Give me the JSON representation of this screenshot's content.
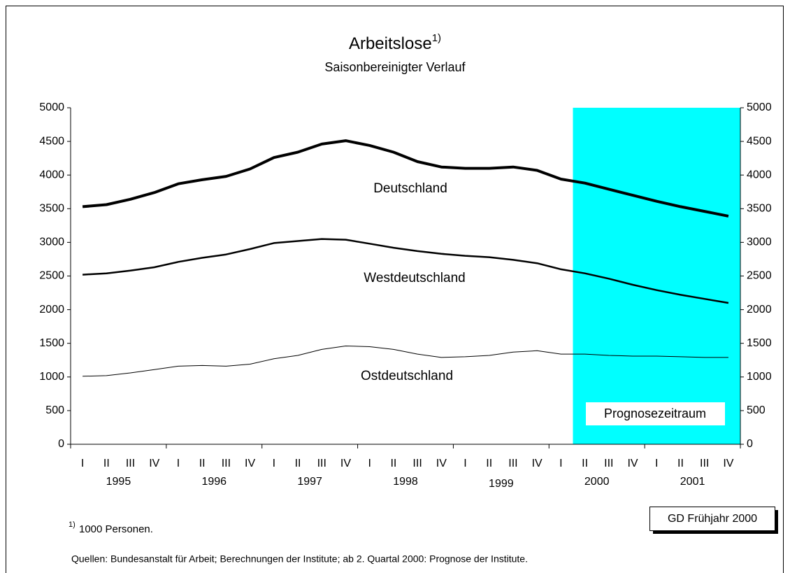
{
  "chart_data": {
    "type": "line",
    "title": "Arbeitslose",
    "title_superscript": "1)",
    "subtitle": "Saisonbereinigter Verlauf",
    "categories": [
      "I",
      "II",
      "III",
      "IV",
      "I",
      "II",
      "III",
      "IV",
      "I",
      "II",
      "III",
      "IV",
      "I",
      "II",
      "III",
      "IV",
      "I",
      "II",
      "III",
      "IV",
      "I",
      "II",
      "III",
      "IV",
      "I",
      "II",
      "III",
      "IV"
    ],
    "years": [
      "1995",
      "1996",
      "1997",
      "1998",
      "1999",
      "2000",
      "2001"
    ],
    "series": [
      {
        "name": "Deutschland",
        "color": "#000000",
        "line_width": 4,
        "values": [
          3530,
          3560,
          3640,
          3740,
          3870,
          3930,
          3980,
          4090,
          4260,
          4340,
          4460,
          4510,
          4440,
          4340,
          4200,
          4120,
          4100,
          4100,
          4120,
          4070,
          3940,
          3880,
          3790,
          3700,
          3610,
          3530,
          3460,
          3390
        ]
      },
      {
        "name": "Westdeutschland",
        "color": "#000000",
        "line_width": 2.5,
        "values": [
          2520,
          2540,
          2580,
          2630,
          2710,
          2770,
          2820,
          2900,
          2990,
          3020,
          3050,
          3040,
          2980,
          2920,
          2870,
          2830,
          2800,
          2780,
          2740,
          2690,
          2600,
          2540,
          2460,
          2370,
          2290,
          2220,
          2160,
          2100
        ]
      },
      {
        "name": "Ostdeutschland",
        "color": "#000000",
        "line_width": 1,
        "values": [
          1010,
          1020,
          1060,
          1110,
          1160,
          1170,
          1160,
          1190,
          1270,
          1320,
          1410,
          1460,
          1450,
          1410,
          1340,
          1290,
          1300,
          1320,
          1370,
          1390,
          1340,
          1340,
          1320,
          1310,
          1310,
          1300,
          1290,
          1290
        ]
      }
    ],
    "ylim": [
      0,
      5000
    ],
    "yticks": [
      0,
      500,
      1000,
      1500,
      2000,
      2500,
      3000,
      3500,
      4000,
      4500,
      5000
    ],
    "forecast_region": {
      "label": "Prognosezeitraum",
      "start_category": 21,
      "color": "#00ffff"
    },
    "badge": "GD Frühjahr 2000",
    "footnote_marker": "1)",
    "footnote": "1000 Personen.",
    "source": "Quellen: Bundesanstalt für Arbeit; Berechnungen der Institute; ab 2. Quartal 2000: Prognose der Institute."
  }
}
